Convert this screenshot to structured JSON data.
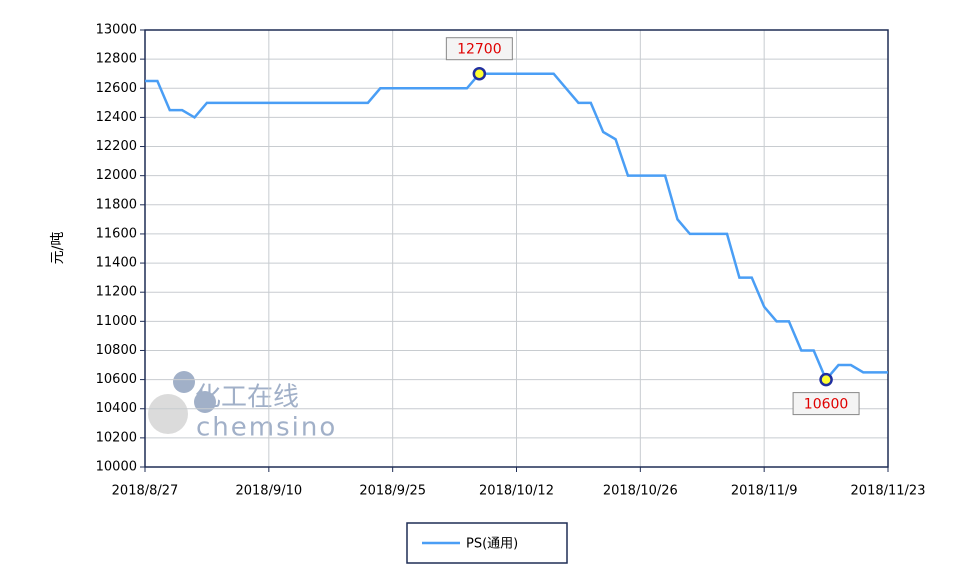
{
  "chart_data": {
    "type": "line",
    "y_label": "元/吨",
    "categories": [
      "2018/8/27",
      null,
      null,
      null,
      null,
      null,
      null,
      null,
      null,
      null,
      "2018/9/10",
      null,
      null,
      null,
      null,
      null,
      null,
      null,
      null,
      null,
      "2018/9/25",
      null,
      null,
      null,
      null,
      null,
      null,
      null,
      null,
      null,
      "2018/10/12",
      null,
      null,
      null,
      null,
      null,
      null,
      null,
      null,
      null,
      "2018/10/26",
      null,
      null,
      null,
      null,
      null,
      null,
      null,
      null,
      null,
      "2018/11/9",
      null,
      null,
      null,
      null,
      null,
      null,
      null,
      null,
      null,
      "2018/11/23"
    ],
    "series": [
      {
        "name": "PS(通用)",
        "color": "#4a9ef5",
        "values": [
          12650,
          12650,
          12450,
          12450,
          12400,
          12500,
          12500,
          12500,
          12500,
          12500,
          12500,
          12500,
          12500,
          12500,
          12500,
          12500,
          12500,
          12500,
          12500,
          12600,
          12600,
          12600,
          12600,
          12600,
          12600,
          12600,
          12600,
          12700,
          12700,
          12700,
          12700,
          12700,
          12700,
          12700,
          12600,
          12500,
          12500,
          12300,
          12250,
          12000,
          12000,
          12000,
          12000,
          11700,
          11600,
          11600,
          11600,
          11600,
          11300,
          11300,
          11100,
          11000,
          11000,
          10800,
          10800,
          10600,
          10700,
          10700,
          10650,
          10650,
          10650
        ]
      }
    ],
    "highlights": [
      {
        "x": 27,
        "value": 12700
      },
      {
        "x": 55,
        "value": 10600
      }
    ],
    "ylim": [
      10000,
      13000
    ],
    "yticks": [
      10000,
      10200,
      10400,
      10600,
      10800,
      11000,
      11200,
      11400,
      11600,
      11800,
      12000,
      12200,
      12400,
      12600,
      12800,
      13000
    ],
    "grid": true,
    "legend": "bottom",
    "watermark": {
      "cn": "化工在线",
      "en": "chemsino"
    }
  }
}
